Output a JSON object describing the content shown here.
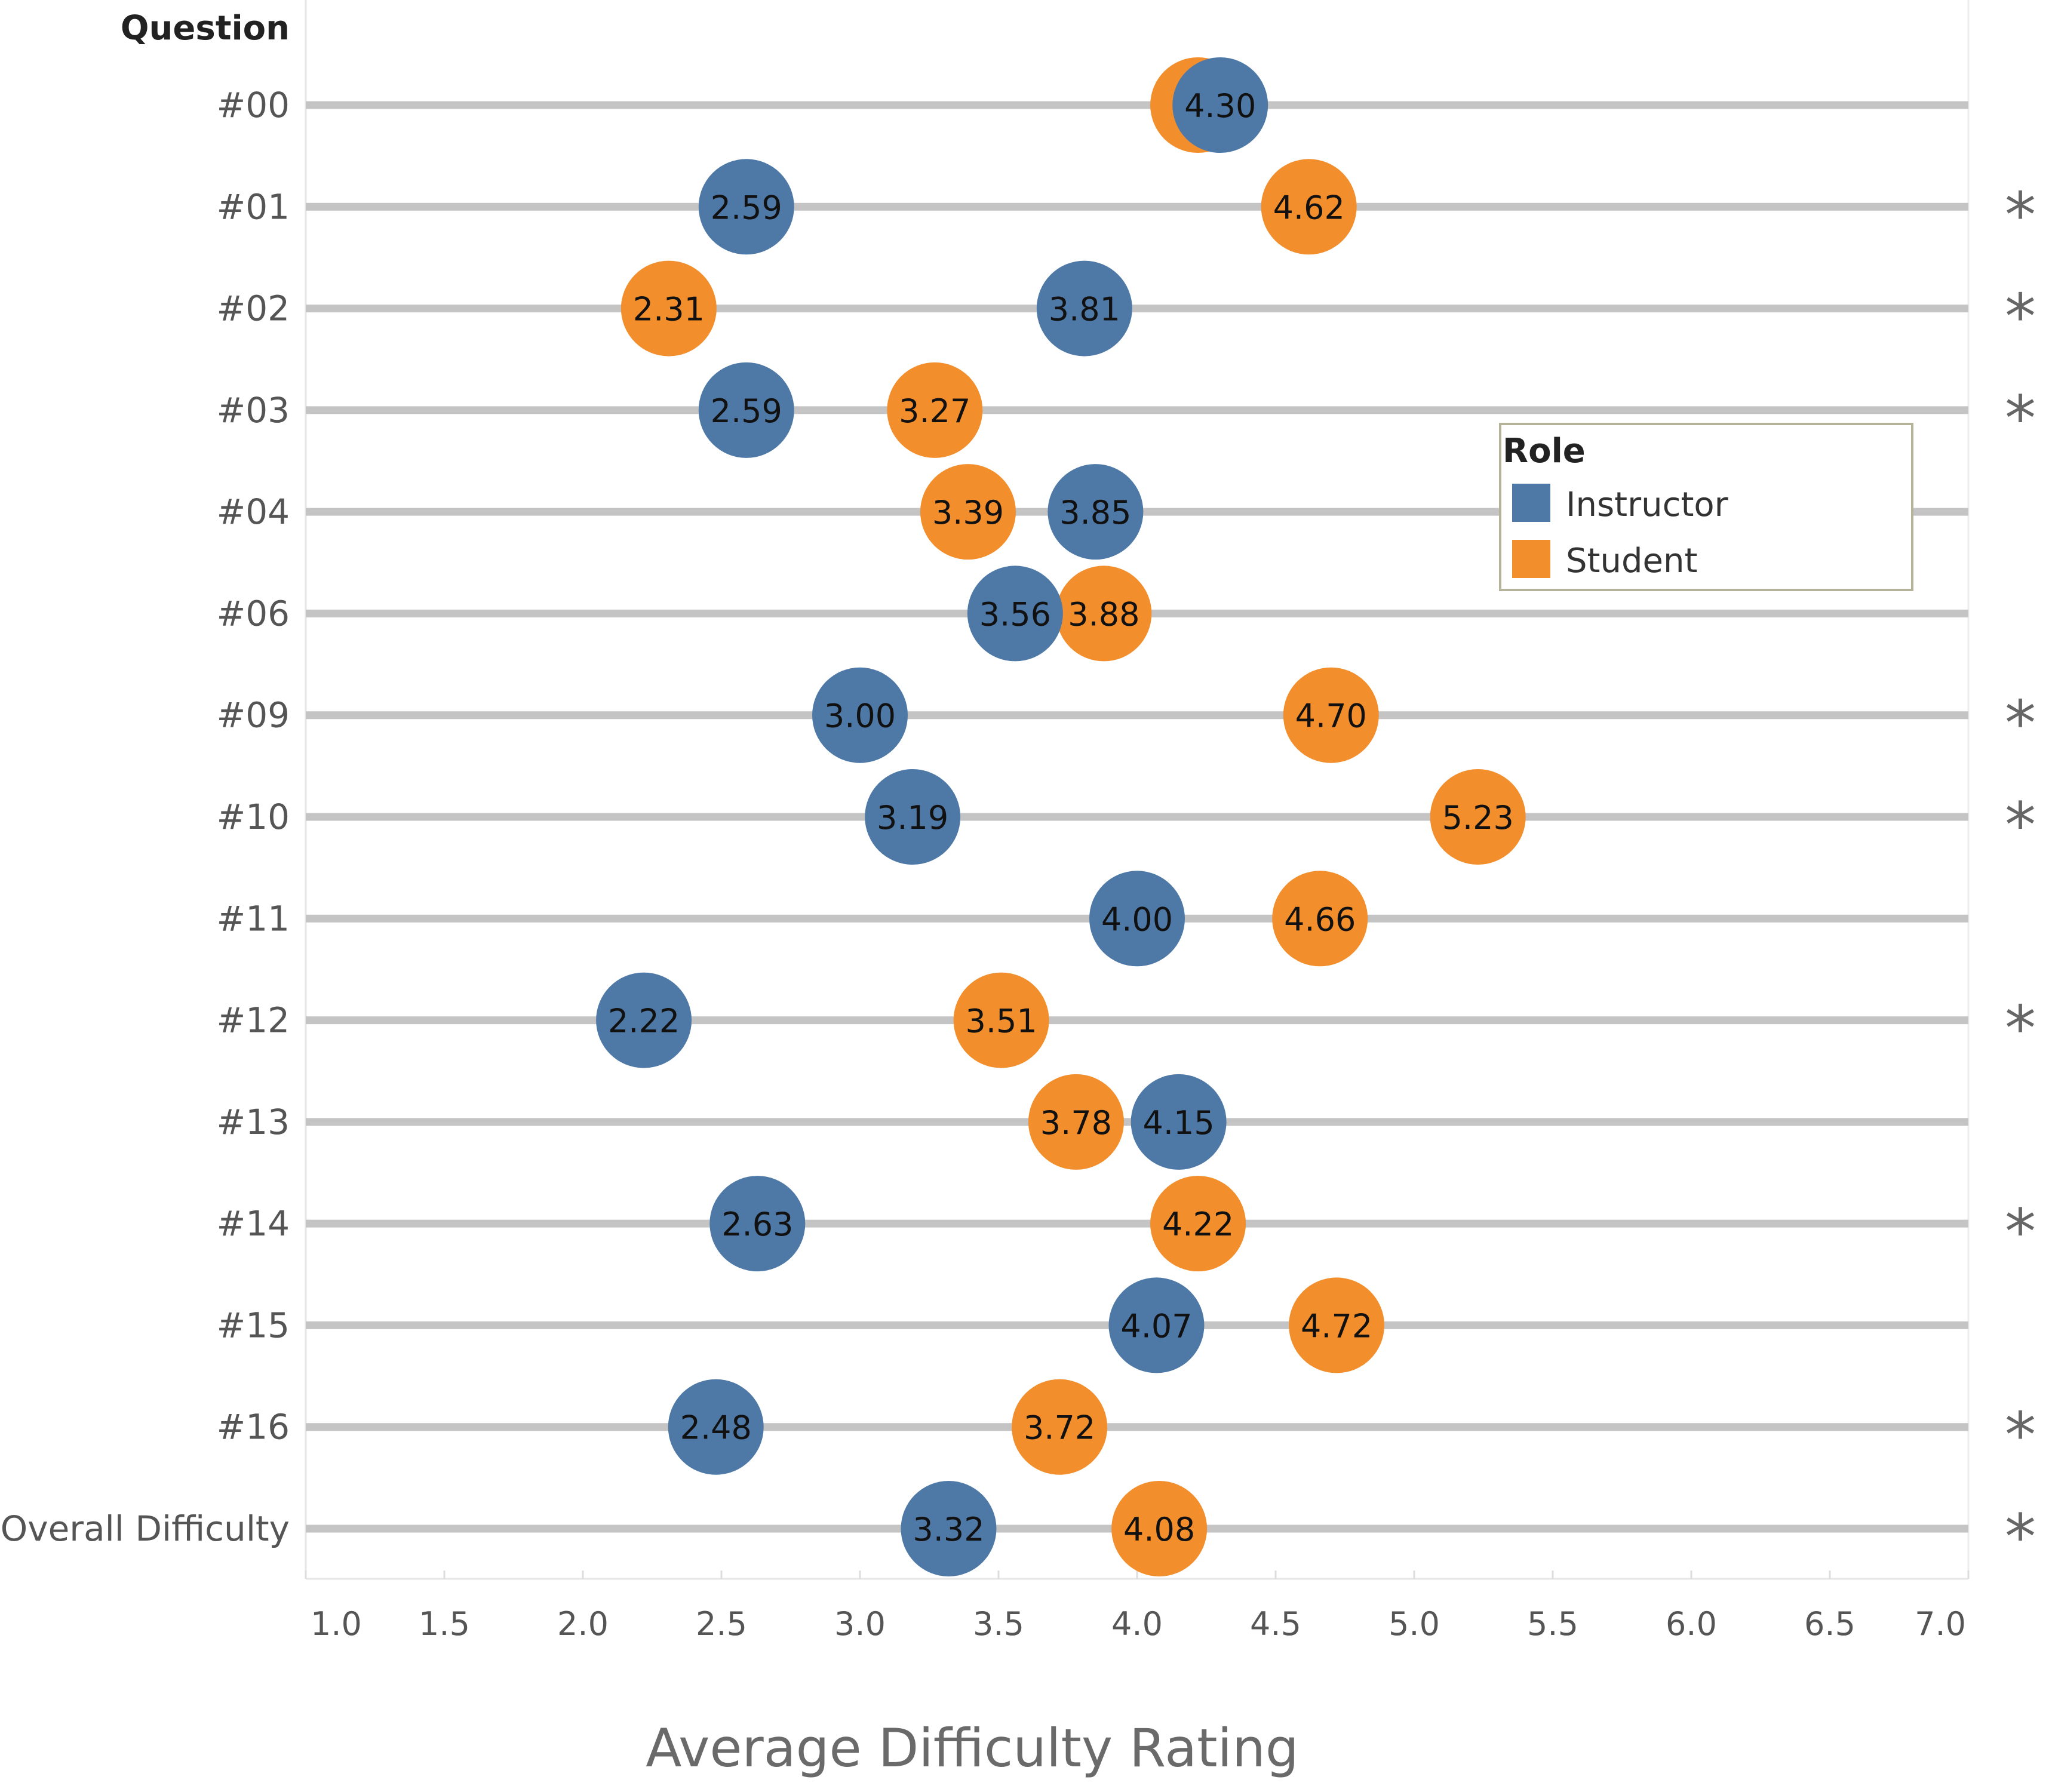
{
  "chart_data": {
    "type": "scatter",
    "subtype": "dot-plot",
    "row_header": "Question",
    "xlabel": "Average Difficulty Rating",
    "xlim": [
      1.0,
      7.0
    ],
    "xticks": [
      "1.0",
      "1.5",
      "2.0",
      "2.5",
      "3.0",
      "3.5",
      "4.0",
      "4.5",
      "5.0",
      "5.5",
      "6.0",
      "6.5",
      "7.0"
    ],
    "legend": {
      "title": "Role",
      "position": "top-right",
      "entries": [
        {
          "name": "Instructor",
          "color": "#4e79a7"
        },
        {
          "name": "Student",
          "color": "#f28e2b"
        }
      ]
    },
    "significance_marker": "*",
    "categories": [
      "#00",
      "#01",
      "#02",
      "#03",
      "#04",
      "#06",
      "#09",
      "#10",
      "#11",
      "#12",
      "#13",
      "#14",
      "#15",
      "#16",
      "Overall Difficulty"
    ],
    "series": [
      {
        "name": "Student",
        "color": "#f28e2b",
        "values": [
          4.22,
          4.62,
          2.31,
          3.27,
          3.39,
          3.88,
          4.7,
          5.23,
          4.66,
          3.51,
          3.78,
          4.22,
          4.72,
          3.72,
          4.08
        ],
        "labels": [
          "",
          "4.62",
          "2.31",
          "3.27",
          "3.39",
          "3.88",
          "4.70",
          "5.23",
          "4.66",
          "3.51",
          "3.78",
          "4.22",
          "4.72",
          "3.72",
          "4.08"
        ]
      },
      {
        "name": "Instructor",
        "color": "#4e79a7",
        "values": [
          4.3,
          2.59,
          3.81,
          2.59,
          3.85,
          3.56,
          3.0,
          3.19,
          4.0,
          2.22,
          4.15,
          2.63,
          4.07,
          2.48,
          3.32
        ],
        "labels": [
          "4.30",
          "2.59",
          "3.81",
          "2.59",
          "3.85",
          "3.56",
          "3.00",
          "3.19",
          "4.00",
          "2.22",
          "4.15",
          "2.63",
          "4.07",
          "2.48",
          "3.32"
        ]
      }
    ],
    "significant": [
      false,
      true,
      true,
      true,
      false,
      false,
      true,
      true,
      false,
      true,
      false,
      true,
      false,
      true,
      true
    ]
  }
}
